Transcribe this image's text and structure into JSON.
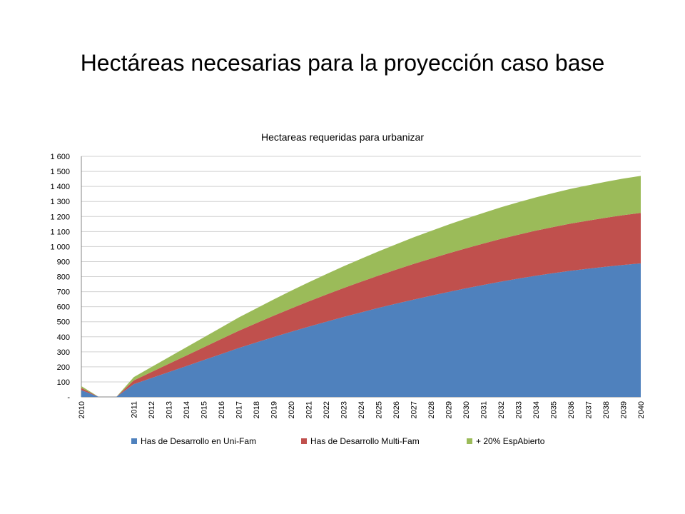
{
  "slide": {
    "title": "Hectáreas necesarias para la proyección caso base"
  },
  "chart_data": {
    "type": "area",
    "stacked": true,
    "title": "Hectareas requeridas para urbanizar",
    "xlabel": "",
    "ylabel": "",
    "ylim": [
      0,
      1600
    ],
    "y_ticks": [
      0,
      100,
      200,
      300,
      400,
      500,
      600,
      700,
      800,
      900,
      1000,
      1100,
      1200,
      1300,
      1400,
      1500,
      1600
    ],
    "y_tick_labels": [
      "-",
      "100",
      "200",
      "300",
      "400",
      "500",
      "600",
      "700",
      "800",
      "900",
      "1 000",
      "1 100",
      "1 200",
      "1 300",
      "1 400",
      "1 500",
      "1 600"
    ],
    "grid": true,
    "legend_position": "bottom",
    "categories": [
      "2010",
      "",
      "",
      "2011",
      "2012",
      "2013",
      "2014",
      "2015",
      "2016",
      "2017",
      "2018",
      "2019",
      "2020",
      "2021",
      "2022",
      "2023",
      "2024",
      "2025",
      "2026",
      "2027",
      "2028",
      "2029",
      "2030",
      "2031",
      "2032",
      "2033",
      "2034",
      "2035",
      "2036",
      "2037",
      "2038",
      "2039",
      "2040"
    ],
    "series": [
      {
        "name": "Has de Desarrollo en Uni-Fam",
        "color": "#4F81BD",
        "values": [
          45,
          0,
          0,
          85,
          125,
          165,
          205,
          245,
          285,
          325,
          362,
          398,
          433,
          467,
          500,
          532,
          562,
          592,
          620,
          647,
          673,
          698,
          722,
          745,
          767,
          787,
          806,
          823,
          839,
          853,
          866,
          878,
          888
        ]
      },
      {
        "name": "Has de Desarrollo Multi-Fam",
        "color": "#C0504D",
        "values": [
          15,
          0,
          0,
          25,
          40,
          55,
          70,
          85,
          100,
          115,
          128,
          142,
          155,
          168,
          180,
          192,
          204,
          215,
          226,
          237,
          247,
          257,
          266,
          275,
          284,
          292,
          300,
          307,
          314,
          320,
          326,
          331,
          336
        ]
      },
      {
        "name": "+ 20% EspAbierto",
        "color": "#9BBB59",
        "values": [
          12,
          0,
          0,
          22,
          33,
          44,
          55,
          66,
          77,
          88,
          98,
          108,
          118,
          127,
          136,
          145,
          153,
          161,
          169,
          177,
          184,
          191,
          198,
          204,
          210,
          216,
          221,
          226,
          231,
          235,
          239,
          243,
          246
        ]
      }
    ]
  }
}
